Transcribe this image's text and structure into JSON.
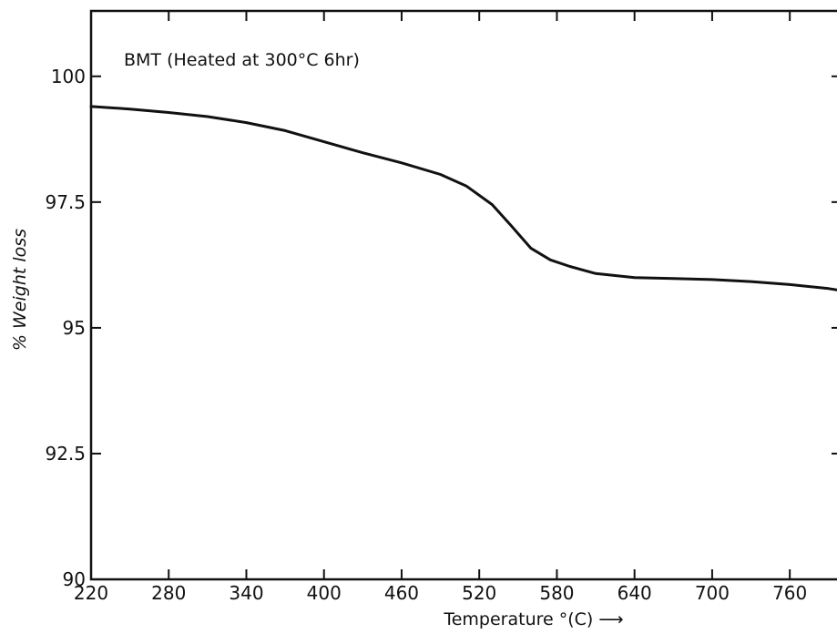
{
  "chart_data": {
    "type": "line",
    "annotation": "BMT (Heated at 300°C 6hr)",
    "xlabel": "Temperature °(C) ⟶",
    "ylabel": "% Weight loss",
    "xlim": [
      220,
      800
    ],
    "ylim": [
      90,
      101.3
    ],
    "x_ticks": [
      220,
      280,
      340,
      400,
      460,
      520,
      580,
      640,
      700,
      760
    ],
    "x_tick_labels": [
      "220",
      "280",
      "340",
      "400",
      "460",
      "520",
      "580",
      "640",
      "700",
      "760"
    ],
    "y_ticks": [
      90,
      92.5,
      95,
      97.5,
      100
    ],
    "y_tick_labels": [
      "90",
      "92.5",
      "95",
      "97.5",
      "100"
    ],
    "grid": false,
    "series": [
      {
        "x": [
          220,
          250,
          280,
          310,
          340,
          370,
          400,
          430,
          460,
          490,
          510,
          530,
          545,
          560,
          575,
          590,
          610,
          640,
          670,
          700,
          730,
          760,
          790,
          800
        ],
        "y": [
          99.4,
          99.35,
          99.28,
          99.2,
          99.08,
          98.92,
          98.7,
          98.48,
          98.28,
          98.05,
          97.82,
          97.45,
          97.02,
          96.58,
          96.35,
          96.22,
          96.08,
          96.0,
          95.98,
          95.96,
          95.92,
          95.86,
          95.78,
          95.74
        ]
      }
    ]
  }
}
